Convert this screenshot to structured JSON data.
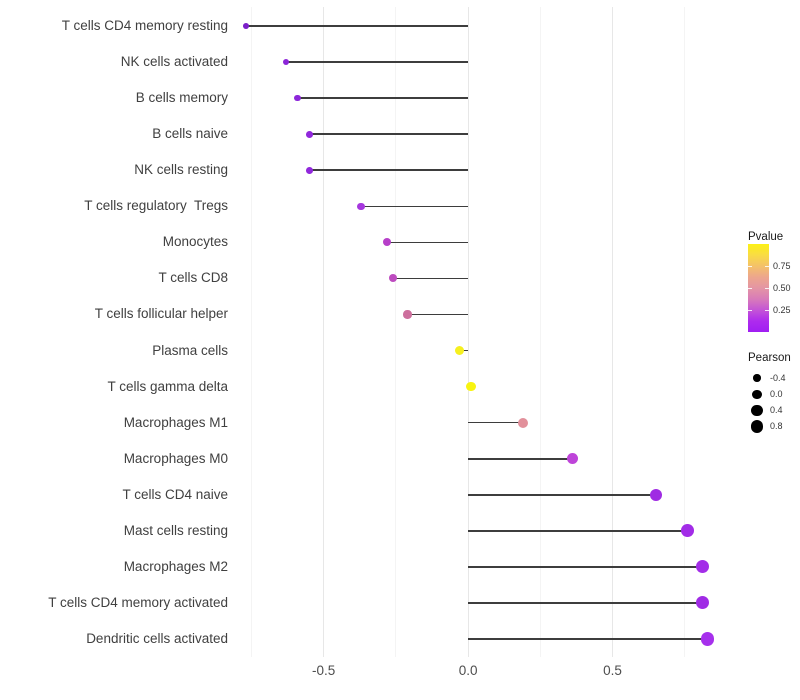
{
  "chart_data": {
    "type": "lollipop",
    "title": "",
    "xlabel": "",
    "ylabel": "",
    "background": "#FFFFFF",
    "x_axis": {
      "ticks": [
        -0.5,
        0.0,
        0.5
      ],
      "tick_labels": [
        "-0.5",
        "0.0",
        "0.5"
      ],
      "minor_ticks": [
        -0.75,
        -0.25,
        0.25,
        0.75
      ],
      "limits": [
        -0.8,
        0.91
      ]
    },
    "grid": {
      "vertical_major": "#E7E7E7",
      "vertical_minor": "#F4F4F4",
      "horizontal": "none"
    },
    "stem_color": "#3D3D3D",
    "categories": [
      "T cells CD4 memory resting",
      "NK cells activated",
      "B cells memory",
      "B cells naive",
      "NK cells resting",
      "T cells regulatory  Tregs",
      "Monocytes",
      "T cells CD8",
      "T cells follicular helper",
      "Plasma cells",
      "T cells gamma delta",
      "Macrophages M1",
      "Macrophages M0",
      "T cells CD4 naive",
      "Mast cells resting",
      "Macrophages M2",
      "T cells CD4 memory activated",
      "Dendritic cells activated"
    ],
    "series": [
      {
        "name": "Pearson",
        "values": [
          -0.77,
          -0.63,
          -0.59,
          -0.55,
          -0.55,
          -0.37,
          -0.28,
          -0.26,
          -0.21,
          -0.03,
          0.01,
          0.19,
          0.36,
          0.65,
          0.76,
          0.81,
          0.81,
          0.83
        ]
      }
    ],
    "points": [
      {
        "label": "T cells CD4 memory resting",
        "pearson": -0.77,
        "color": "#7B1FC8"
      },
      {
        "label": "NK cells activated",
        "pearson": -0.63,
        "color": "#8C26D8"
      },
      {
        "label": "B cells memory",
        "pearson": -0.59,
        "color": "#8D27DA"
      },
      {
        "label": "B cells naive",
        "pearson": -0.55,
        "color": "#9128DC"
      },
      {
        "label": "NK cells resting",
        "pearson": -0.55,
        "color": "#9128DC"
      },
      {
        "label": "T cells regulatory  Tregs",
        "pearson": -0.37,
        "color": "#A637DE"
      },
      {
        "label": "Monocytes",
        "pearson": -0.28,
        "color": "#B73FC9"
      },
      {
        "label": "T cells CD8",
        "pearson": -0.26,
        "color": "#BD4BBF"
      },
      {
        "label": "T cells follicular helper",
        "pearson": -0.21,
        "color": "#CD6F9D"
      },
      {
        "label": "Plasma cells",
        "pearson": -0.03,
        "color": "#F6F01F"
      },
      {
        "label": "T cells gamma delta",
        "pearson": 0.01,
        "color": "#F8F410"
      },
      {
        "label": "Macrophages M1",
        "pearson": 0.19,
        "color": "#E2909B"
      },
      {
        "label": "Macrophages M0",
        "pearson": 0.36,
        "color": "#BE44D9"
      },
      {
        "label": "T cells CD4 naive",
        "pearson": 0.65,
        "color": "#9F2BE3"
      },
      {
        "label": "Mast cells resting",
        "pearson": 0.76,
        "color": "#A22CE7"
      },
      {
        "label": "Macrophages M2",
        "pearson": 0.81,
        "color": "#A32DE8"
      },
      {
        "label": "T cells CD4 memory activated",
        "pearson": 0.81,
        "color": "#A02BE5"
      },
      {
        "label": "Dendritic cells activated",
        "pearson": 0.83,
        "color": "#A630EC"
      }
    ],
    "legend": {
      "pvalue": {
        "title": "Pvalue",
        "tick_labels": [
          "0.75",
          "0.50",
          "0.25"
        ],
        "tick_values": [
          0.75,
          0.5,
          0.25
        ],
        "range": [
          0,
          1
        ],
        "gradient_bottom_to_top": [
          "#A01EF2",
          "#AE2BEE",
          "#C455D6",
          "#D87BB9",
          "#E495A4",
          "#EDA68D",
          "#F4C169",
          "#F9DC44",
          "#FCF115"
        ]
      },
      "pearson": {
        "title": "Pearson",
        "labels": [
          "-0.4",
          "0.0",
          "0.4",
          "0.8"
        ],
        "values": [
          -0.4,
          0.0,
          0.4,
          0.8
        ],
        "dot_color": "#000000"
      }
    }
  }
}
